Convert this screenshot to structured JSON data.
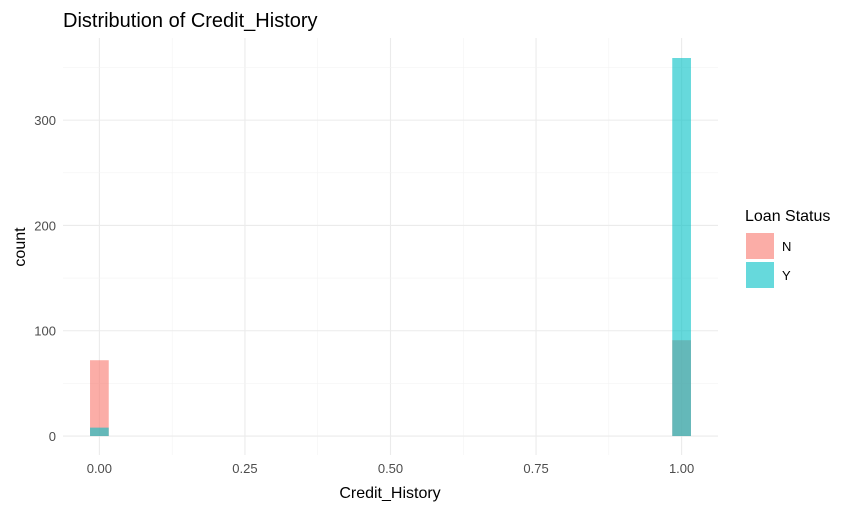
{
  "chart_data": {
    "type": "bar",
    "title": "Distribution of Credit_History",
    "xlabel": "Credit_History",
    "ylabel": "count",
    "x_ticks": [
      "0.00",
      "0.25",
      "0.50",
      "0.75",
      "1.00"
    ],
    "y_ticks": [
      "0",
      "100",
      "200",
      "300"
    ],
    "xlim": [
      -0.0625,
      1.0625
    ],
    "ylim": [
      -18,
      378
    ],
    "grid": true,
    "legend": {
      "title": "Loan Status",
      "placement": "right"
    },
    "categories": [
      0,
      1
    ],
    "series": [
      {
        "name": "N",
        "values": [
          72,
          91
        ],
        "color": "#F8766D"
      },
      {
        "name": "Y",
        "values": [
          8,
          359
        ],
        "color": "#00BFC4"
      }
    ]
  }
}
